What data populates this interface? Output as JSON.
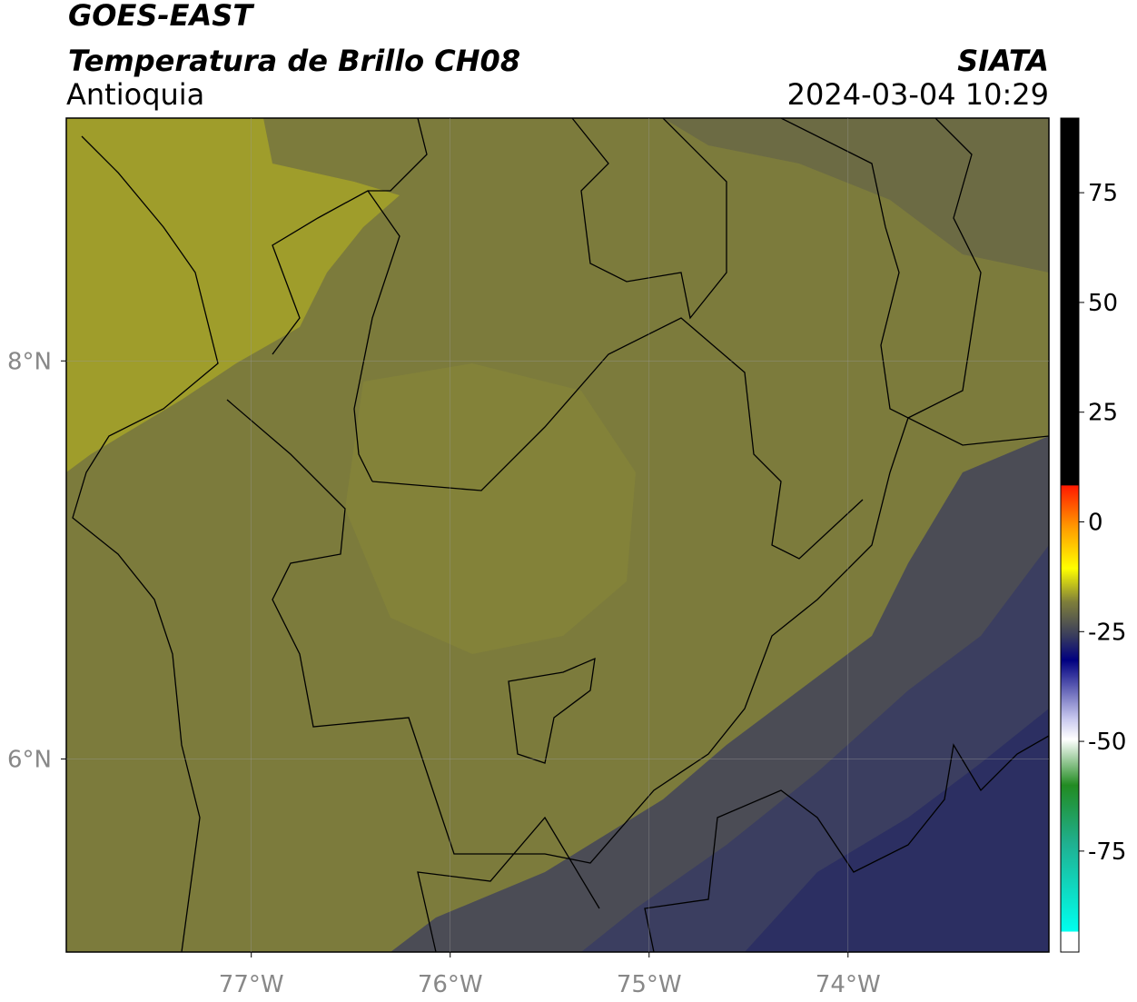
{
  "header": {
    "satellite": "GOES-EAST",
    "product": "Temperatura de Brillo CH08",
    "region": "Antioquia",
    "institution": "SIATA",
    "datetime": "2024-03-04 10:29"
  },
  "map": {
    "xlim": [
      -77.93,
      -72.99
    ],
    "ylim": [
      5.03,
      9.22
    ],
    "xticks": [
      {
        "value": -77,
        "label": "77°W"
      },
      {
        "value": -76,
        "label": "76°W"
      },
      {
        "value": -75,
        "label": "75°W"
      },
      {
        "value": -74,
        "label": "74°W"
      }
    ],
    "yticks": [
      {
        "value": 8,
        "label": "8°N"
      },
      {
        "value": 6,
        "label": "6°N"
      }
    ],
    "grid": true
  },
  "colorbar": {
    "clim": [
      -98,
      92
    ],
    "ticks": [
      75,
      50,
      25,
      0,
      -25,
      -50,
      -75
    ]
  }
}
